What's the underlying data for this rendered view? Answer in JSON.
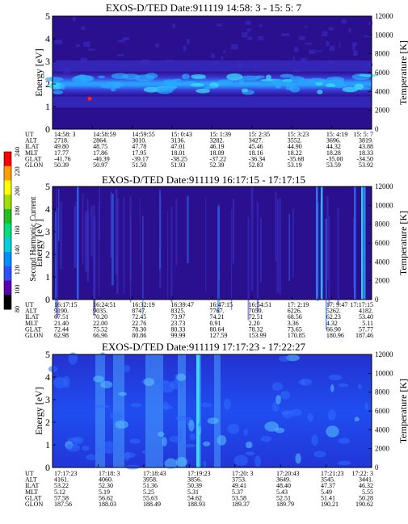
{
  "figure": {
    "colorbar": {
      "label": "Second Harmonic Current",
      "ticks": [
        "80",
        "100",
        "120",
        "140",
        "160",
        "180",
        "200",
        "220",
        "240"
      ],
      "colors": [
        "#000000",
        "#5a00b0",
        "#3050ff",
        "#0090ff",
        "#00d0e0",
        "#00e080",
        "#20c020",
        "#a0e000",
        "#ffff00",
        "#ffa000",
        "#ff0000"
      ]
    },
    "palette": {
      "background": "#2a0f8e",
      "band_low": "#3a3ad8",
      "band_mid": "#2a63ff",
      "band_high": "#2aa9ff",
      "spot_cyan": "#39e7ff",
      "panel3_base": "#1e3fe0",
      "panel3_stripe": "#4aa0ff"
    }
  },
  "chart_data": [
    {
      "type": "heatmap",
      "title": "EXOS-D/TED   Date:911119   14:58: 3 - 15: 5: 7",
      "ylabel": "Energy [eV]",
      "y2label": "Temperature [K]",
      "ylim": [
        0,
        5
      ],
      "y2lim": [
        0,
        12000
      ],
      "yticks": [
        "0",
        "1",
        "2",
        "3",
        "4",
        "5"
      ],
      "y2ticks": [
        "0",
        "2000",
        "4000",
        "6000",
        "8000",
        "10000",
        "12000"
      ],
      "band": {
        "center_eV": 2.0,
        "halfwidth_eV": 0.55
      },
      "rows": [
        {
          "label": "UT",
          "values": [
            "14:58: 3",
            "14:58:59",
            "14:59:55",
            "15: 0:43",
            "15: 1:39",
            "15: 2:35",
            "15: 3:23",
            "15: 4:19",
            "15: 5: 7"
          ]
        },
        {
          "label": "ALT",
          "values": [
            "2718.",
            "2864.",
            "3010.",
            "3136.",
            "3282.",
            "3427.",
            "3552.",
            "3696.",
            "3819."
          ]
        },
        {
          "label": "ILAT",
          "values": [
            "49.80",
            "48.75",
            "47.78",
            "47.01",
            "46.19",
            "45.46",
            "44.90",
            "44.32",
            "43.88"
          ]
        },
        {
          "label": "MLT",
          "values": [
            "17.77",
            "17.86",
            "17.95",
            "18.01",
            "18.09",
            "18.16",
            "18.22",
            "18.28",
            "18.33"
          ]
        },
        {
          "label": "GLAT",
          "values": [
            "-41.76",
            "-40.39",
            "-39.17",
            "-38.25",
            "-37.22",
            "-36.34",
            "-35.68",
            "-35.00",
            "-34.50"
          ]
        },
        {
          "label": "GLON",
          "values": [
            "50.39",
            "50.97",
            "51.50",
            "51.93",
            "52.39",
            "52.83",
            "53.19",
            "53.59",
            "53.92"
          ]
        }
      ]
    },
    {
      "type": "heatmap",
      "title": "EXOS-D/TED   Date:911119   16:17:15 - 17:17:15",
      "ylabel": "Energy [eV]",
      "y2label": "Temperature [K]",
      "ylim": [
        0,
        5
      ],
      "y2lim": [
        0,
        12000
      ],
      "yticks": [
        "0",
        "1",
        "2",
        "3",
        "4",
        "5"
      ],
      "y2ticks": [
        "0",
        "2000",
        "4000",
        "6000",
        "8000",
        "10000",
        "12000"
      ],
      "rows": [
        {
          "label": "UT",
          "values": [
            "16:17:15",
            "16:24:51",
            "16:32:19",
            "16:39:47",
            "16:47:15",
            "16:54:51",
            "17: 2:19",
            "17: 9:47",
            "17:17:15"
          ]
        },
        {
          "label": "ALT",
          "values": [
            "9190.",
            "9035.",
            "8747.",
            "8325.",
            "7767.",
            "7059.",
            "6226.",
            "5262.",
            "4182."
          ]
        },
        {
          "label": "ILAT",
          "values": [
            "67.51",
            "70.20",
            "72.45",
            "73.97",
            "74.21",
            "72.51",
            "68.56",
            "62.23",
            "53.40"
          ]
        },
        {
          "label": "MLT",
          "values": [
            "21.40",
            "22.00",
            "22.76",
            "23.73",
            "0.91",
            "2.20",
            "3.36",
            "4.32",
            "5.11"
          ]
        },
        {
          "label": "GLAT",
          "values": [
            "72.44",
            "75.52",
            "78.30",
            "80.33",
            "80.64",
            "78.32",
            "73.65",
            "66.90",
            "57.77"
          ]
        },
        {
          "label": "GLON",
          "values": [
            "62.98",
            "66.96",
            "80.86",
            "99.99",
            "127.59",
            "153.99",
            "170.85",
            "180.96",
            "187.46"
          ]
        }
      ]
    },
    {
      "type": "heatmap",
      "title": "EXOS-D/TED   Date:911119   17:17:23 - 17:22:27",
      "ylabel": "Energy [eV]",
      "y2label": "Temperature [K]",
      "ylim": [
        0,
        5
      ],
      "y2lim": [
        0,
        12000
      ],
      "yticks": [
        "0",
        "1",
        "2",
        "3",
        "4",
        "5"
      ],
      "y2ticks": [
        "0",
        "2000",
        "4000",
        "6000",
        "8000",
        "10000",
        "12000"
      ],
      "rows": [
        {
          "label": "UT",
          "values": [
            "17:17:23",
            "17:18: 3",
            "17:18:43",
            "17:19:23",
            "17:20: 3",
            "17:20:43",
            "17:21:23",
            "17:22: 3"
          ]
        },
        {
          "label": "ALT",
          "values": [
            "4161.",
            "4060.",
            "3958.",
            "3856.",
            "3753.",
            "3649.",
            "3545.",
            "3441."
          ]
        },
        {
          "label": "ILAT",
          "values": [
            "53.22",
            "52.30",
            "51.36",
            "50.39",
            "49.41",
            "48.40",
            "47.37",
            "46.32"
          ]
        },
        {
          "label": "MLT",
          "values": [
            "5.12",
            "5.19",
            "5.25",
            "5.31",
            "5.37",
            "5.43",
            "5.49",
            "5.55"
          ]
        },
        {
          "label": "GLAT",
          "values": [
            "57.58",
            "56.62",
            "55.63",
            "54.62",
            "53.58",
            "52.51",
            "51.41",
            "50.28"
          ]
        },
        {
          "label": "GLON",
          "values": [
            "187.56",
            "188.03",
            "188.49",
            "188.93",
            "189.37",
            "189.79",
            "190.21",
            "190.62"
          ]
        }
      ]
    }
  ]
}
